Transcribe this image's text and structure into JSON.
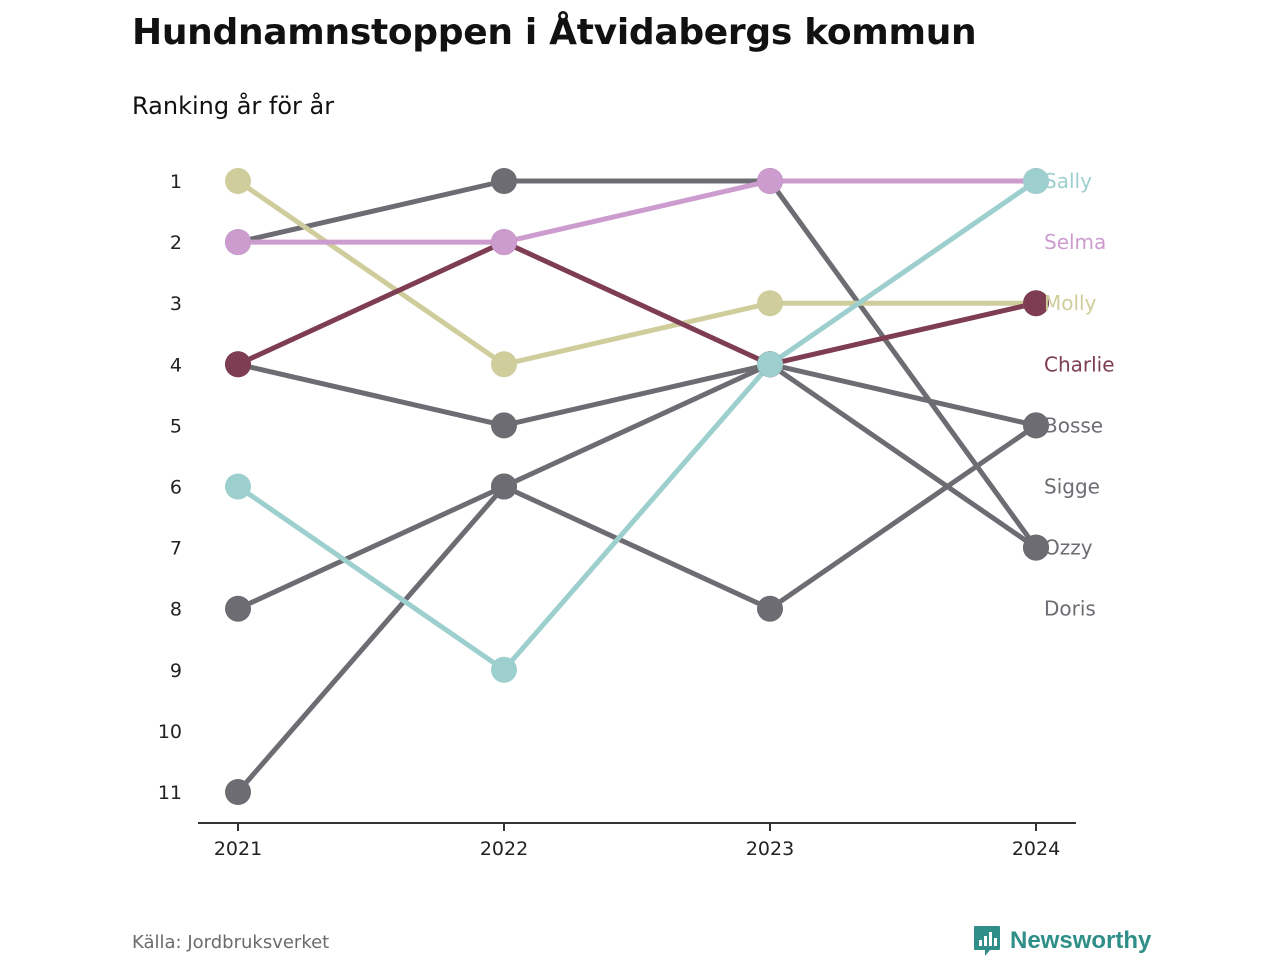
{
  "header": {
    "title": "Hundnamnstoppen i Åtvidabergs kommun",
    "subtitle": "Ranking år för år"
  },
  "footer": {
    "source": "Källa: Jordbruksverket",
    "brand": "Newsworthy",
    "brand_icon": "bar-chart-icon"
  },
  "colors": {
    "Sally": "#9dcfcf",
    "Selma": "#cc9ccf",
    "Molly": "#cfcd9c",
    "Charlie": "#7e3d52",
    "Bosse": "#6d6c73",
    "Sigge": "#6d6c73",
    "Ozzy": "#6d6c73",
    "Doris": "#6d6c73",
    "axis": "#333333",
    "brand": "#2f8f88"
  },
  "chart_data": {
    "type": "line",
    "x": [
      "2021",
      "2022",
      "2023",
      "2024"
    ],
    "y_ticks": [
      "1",
      "2",
      "3",
      "4",
      "5",
      "6",
      "7",
      "8",
      "9",
      "10",
      "11"
    ],
    "ylim": [
      1,
      11
    ],
    "y_reversed": true,
    "grid": false,
    "legend_position": "right-end labels",
    "end_labels": [
      "Sally",
      "Selma",
      "Molly",
      "Charlie",
      "Bosse",
      "Sigge",
      "Ozzy",
      "Doris"
    ],
    "series": [
      {
        "name": "Bosse",
        "values": [
          2,
          1,
          1,
          7
        ]
      },
      {
        "name": "Sigge",
        "values": [
          4,
          5,
          4,
          5
        ]
      },
      {
        "name": "Ozzy",
        "values": [
          8,
          6,
          4,
          7
        ]
      },
      {
        "name": "Doris",
        "values": [
          11,
          6,
          8,
          5
        ]
      },
      {
        "name": "Molly",
        "values": [
          1,
          4,
          3,
          3
        ]
      },
      {
        "name": "Charlie",
        "values": [
          4,
          2,
          4,
          3
        ]
      },
      {
        "name": "Selma",
        "values": [
          2,
          2,
          1,
          1
        ]
      },
      {
        "name": "Sally",
        "values": [
          6,
          9,
          4,
          1
        ]
      }
    ]
  }
}
